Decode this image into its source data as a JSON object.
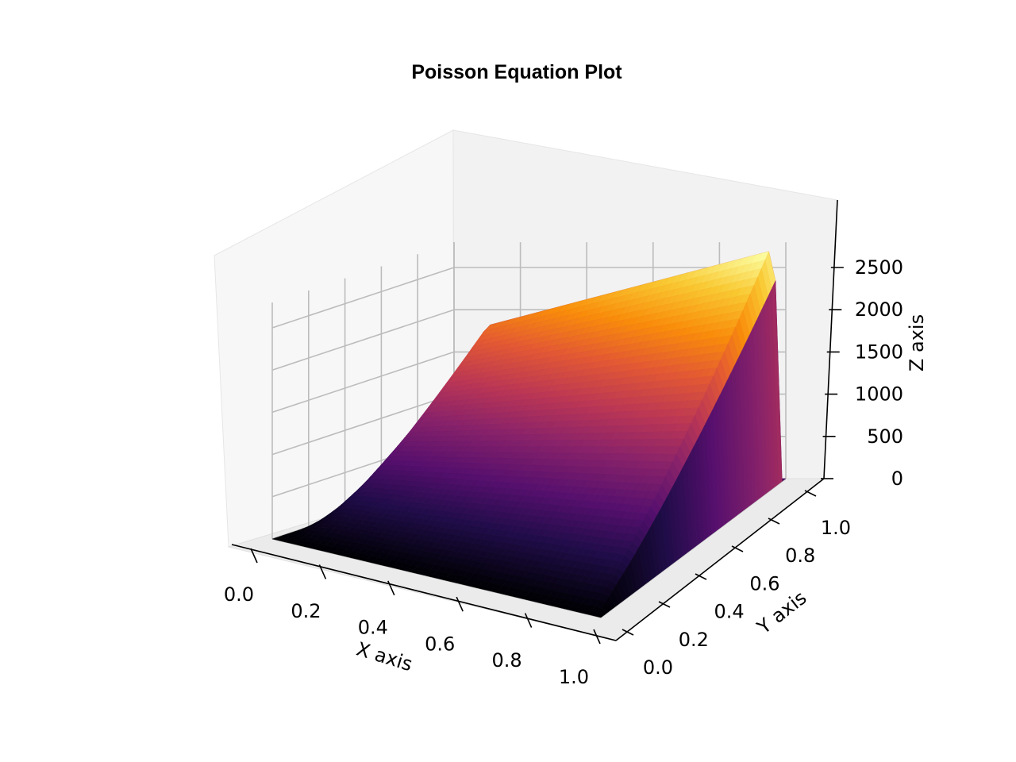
{
  "chart_data": {
    "type": "surface",
    "title": "Poisson Equation Plot",
    "xlabel": "X axis",
    "ylabel": "Y axis",
    "zlabel": "Z axis",
    "colormap": "inferno",
    "xlim": [
      0,
      1
    ],
    "ylim": [
      0,
      1
    ],
    "zlim": [
      0,
      2700
    ],
    "xticks": [
      "0.0",
      "0.2",
      "0.4",
      "0.6",
      "0.8",
      "1.0"
    ],
    "yticks": [
      "0.0",
      "0.2",
      "0.4",
      "0.6",
      "0.8",
      "1.0"
    ],
    "zticks": [
      "0",
      "500",
      "1000",
      "1500",
      "2000",
      "2500"
    ],
    "grid": true,
    "surface_max": 2700,
    "boundary_value": 0
  }
}
